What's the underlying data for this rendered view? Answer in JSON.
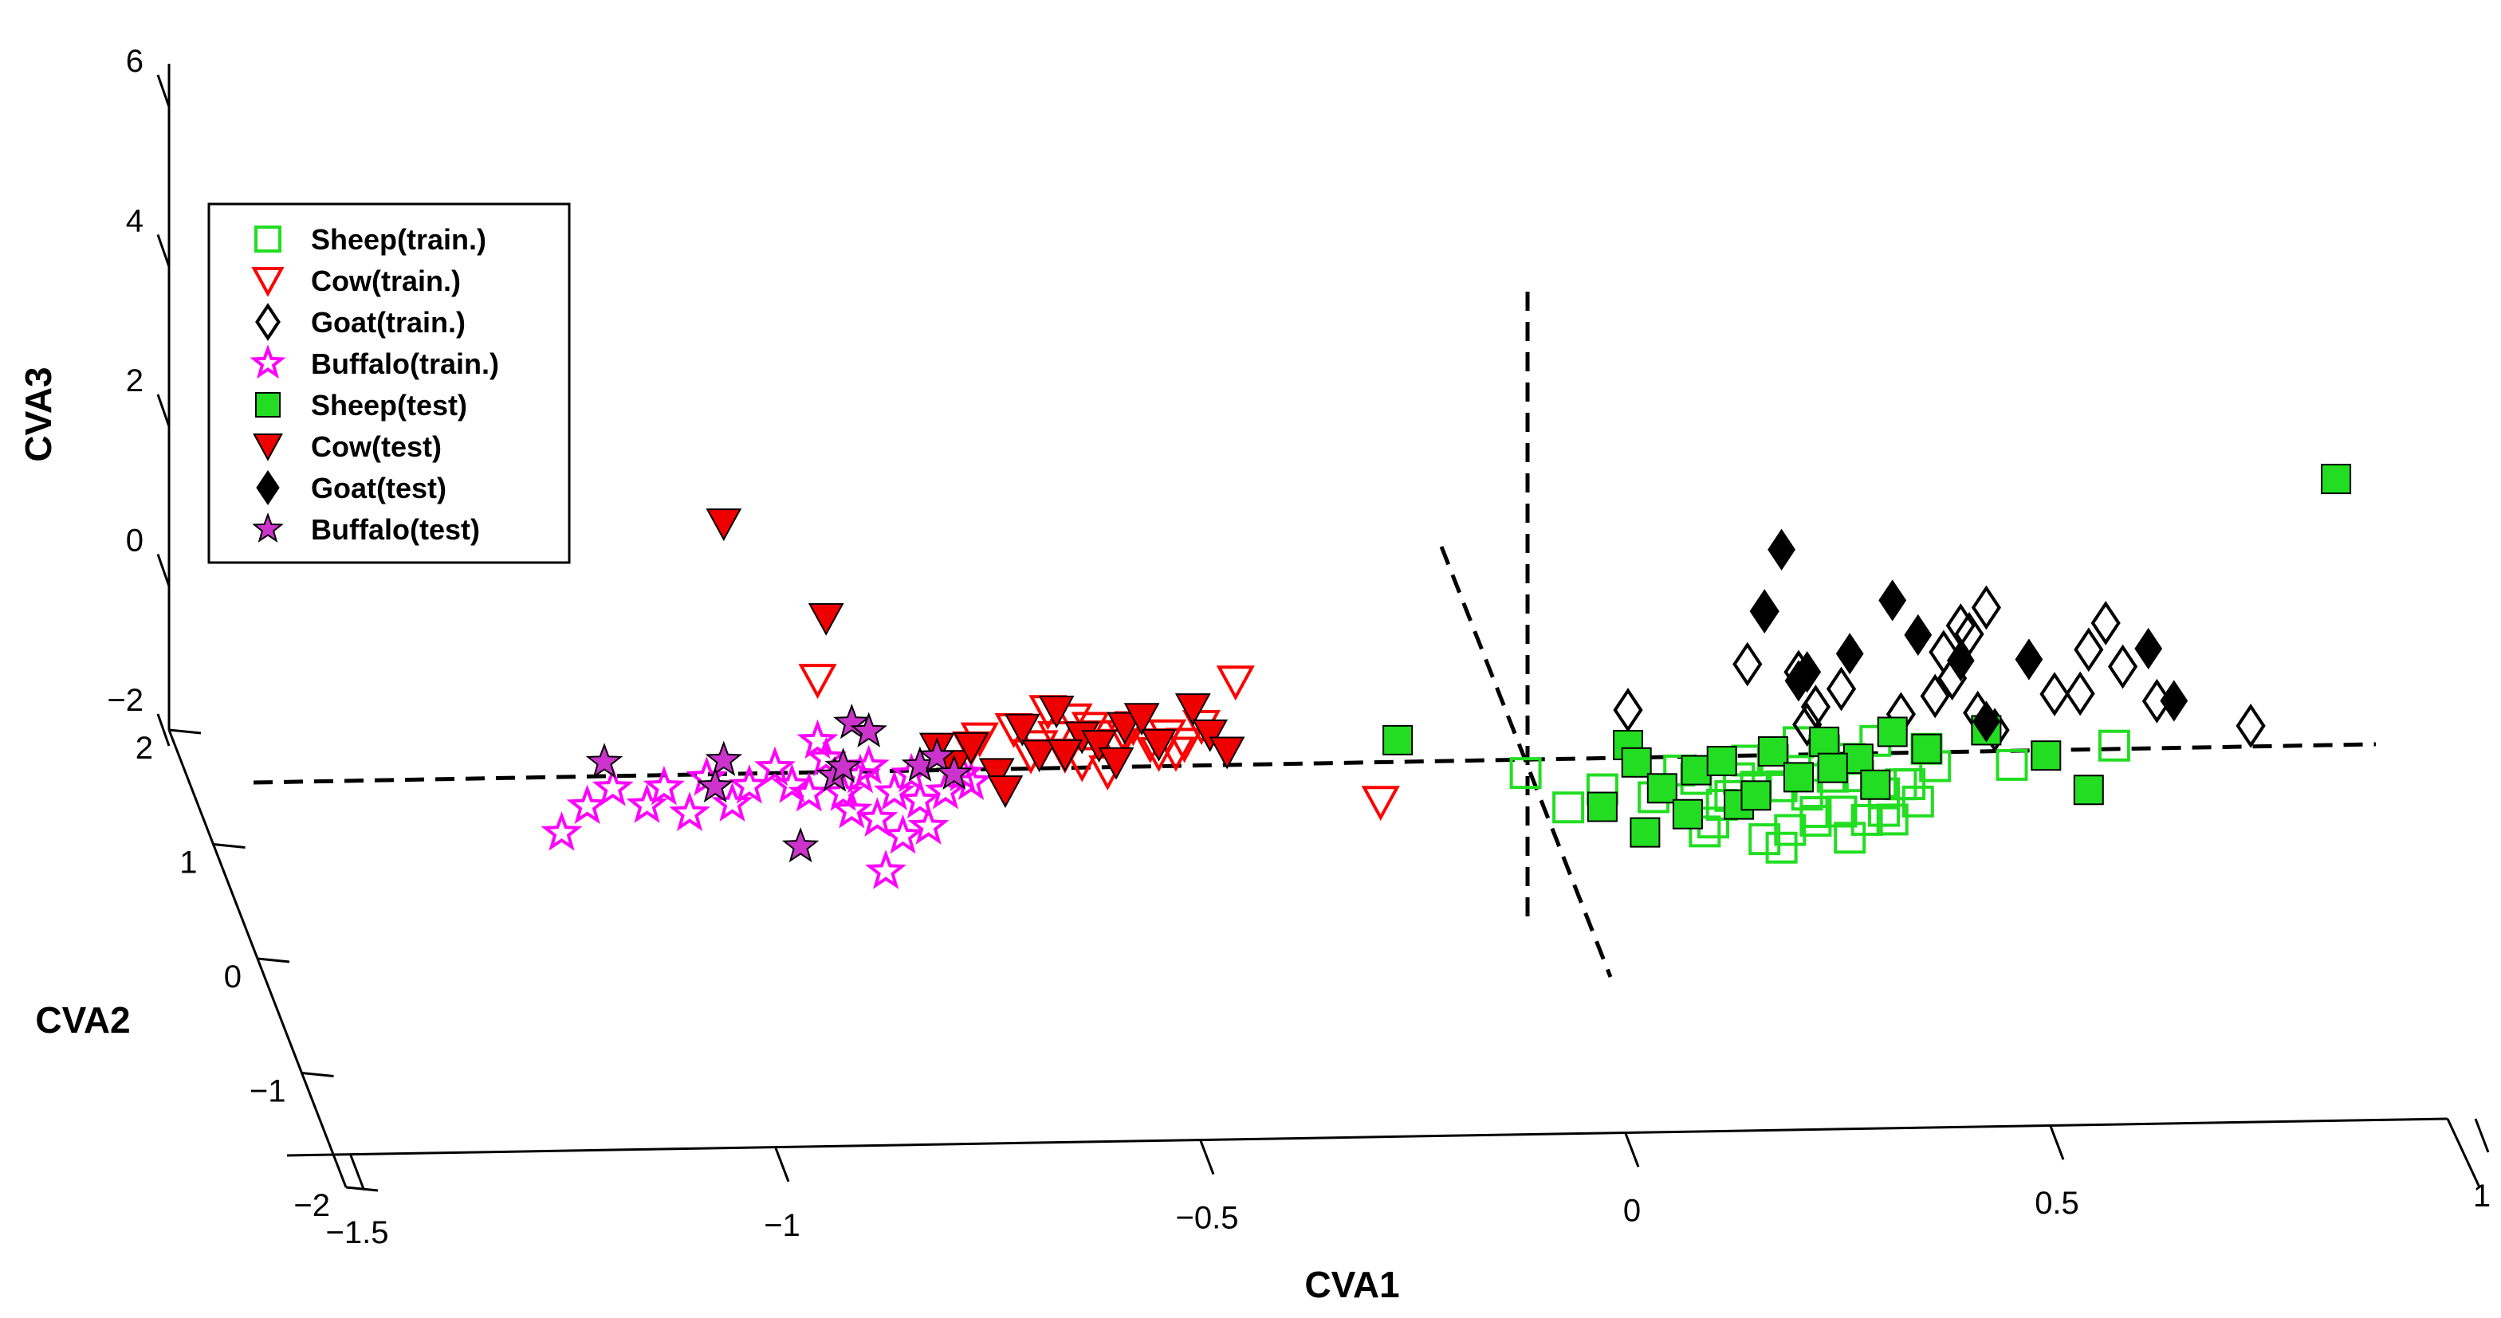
{
  "chart_data": {
    "type": "scatter",
    "projection": "3d",
    "title": "",
    "axes": {
      "x": {
        "label": "CVA1",
        "range": [
          -1.5,
          1
        ],
        "ticks": [
          "−1.5",
          "−1",
          "−0.5",
          "0",
          "0.5",
          "1"
        ],
        "tick_values": [
          -1.5,
          -1,
          -0.5,
          0,
          0.5,
          1
        ]
      },
      "y": {
        "label": "CVA2",
        "range": [
          -2,
          2
        ],
        "ticks": [
          "−2",
          "−1",
          "0",
          "1",
          "2"
        ],
        "tick_values": [
          -2,
          -1,
          0,
          1,
          2
        ]
      },
      "z": {
        "label": "CVA3",
        "range": [
          -2,
          6
        ],
        "ticks": [
          "−2",
          "0",
          "2",
          "4",
          "6"
        ],
        "tick_values": [
          -2,
          0,
          2,
          4,
          6
        ]
      }
    },
    "legend": {
      "position": "top-left",
      "entries": [
        {
          "name": "Sheep(train.)",
          "marker": "square",
          "filled": false,
          "color": "#22dd22"
        },
        {
          "name": "Cow(train.)",
          "marker": "triangle-down",
          "filled": false,
          "color": "#ff0000"
        },
        {
          "name": "Goat(train.)",
          "marker": "diamond",
          "filled": false,
          "color": "#000000"
        },
        {
          "name": "Buffalo(train.)",
          "marker": "star",
          "filled": false,
          "color": "#ff00ff"
        },
        {
          "name": "Sheep(test)",
          "marker": "square",
          "filled": true,
          "color": "#22dd22"
        },
        {
          "name": "Cow(test)",
          "marker": "triangle-down",
          "filled": true,
          "color": "#ee0000"
        },
        {
          "name": "Goat(test)",
          "marker": "diamond",
          "filled": true,
          "color": "#000000"
        },
        {
          "name": "Buffalo(test)",
          "marker": "star",
          "filled": true,
          "color": "#cc33cc"
        }
      ]
    },
    "series_projected": [
      {
        "name": "Sheep(train.)",
        "cva1": [
          -0.12,
          -0.07,
          -0.03,
          0.03,
          0.06,
          0.08,
          0.1,
          0.12,
          0.14,
          0.16,
          0.18,
          0.2,
          0.22,
          0.24,
          0.26,
          0.28,
          0.3,
          0.32,
          0.34,
          0.36,
          0.19,
          0.21,
          0.23,
          0.25,
          0.15,
          0.17,
          0.27,
          0.29,
          0.31,
          0.11,
          0.13,
          0.33,
          0.35,
          0.45,
          0.57,
          0.09,
          0.18,
          0.22,
          0.26,
          0.3
        ],
        "cva3": [
          0.0,
          -0.4,
          -0.2,
          -0.3,
          0.0,
          -0.1,
          -0.6,
          -0.3,
          0.1,
          -0.8,
          -0.2,
          0.3,
          -0.5,
          -0.1,
          0.1,
          -0.6,
          -0.3,
          -0.2,
          -0.4,
          0.0,
          -0.7,
          -0.3,
          0.2,
          -0.5,
          -0.2,
          0.1,
          -0.1,
          0.3,
          -0.6,
          -0.4,
          -0.1,
          -0.2,
          0.2,
          0.0,
          0.2,
          -0.7,
          -0.9,
          -0.6,
          -0.8,
          -0.5
        ]
      },
      {
        "name": "Cow(train.)",
        "cva1": [
          -0.95,
          -0.77,
          -0.76,
          -0.72,
          -0.7,
          -0.69,
          -0.67,
          -0.65,
          -0.63,
          -0.62,
          -0.6,
          -0.58,
          -0.55,
          -0.54,
          -0.52,
          -0.5,
          -0.68,
          -0.66,
          -0.64,
          -0.61,
          -0.59,
          -0.56,
          -0.53,
          -0.46,
          -0.29
        ],
        "cva3": [
          1.2,
          0.4,
          0.5,
          0.6,
          0.3,
          0.4,
          0.5,
          0.7,
          0.6,
          0.5,
          0.4,
          0.6,
          0.3,
          0.5,
          0.4,
          0.6,
          0.8,
          0.3,
          0.2,
          0.1,
          0.5,
          0.4,
          0.3,
          1.1,
          -0.3
        ]
      },
      {
        "name": "Goat(train.)",
        "cva1": [
          0.0,
          0.16,
          0.14,
          0.2,
          0.22,
          0.25,
          0.32,
          0.36,
          0.38,
          0.4,
          0.42,
          0.39,
          0.37,
          0.41,
          0.5,
          0.54,
          0.56,
          0.58,
          0.62,
          0.53,
          0.73,
          0.21,
          0.43
        ],
        "cva3": [
          0.7,
          1.8,
          1.2,
          1.1,
          0.7,
          0.9,
          0.6,
          0.8,
          1.0,
          1.5,
          1.8,
          1.6,
          1.3,
          0.6,
          0.8,
          1.3,
          1.6,
          1.1,
          0.7,
          0.8,
          0.4,
          0.5,
          0.4
        ]
      },
      {
        "name": "Buffalo(train.)",
        "cva1": [
          -1.25,
          -1.22,
          -1.19,
          -1.15,
          -1.13,
          -1.1,
          -1.08,
          -1.05,
          -1.03,
          -1.0,
          -0.98,
          -0.96,
          -0.94,
          -0.92,
          -0.9,
          -0.88,
          -0.86,
          -0.84,
          -0.82,
          -0.8,
          -0.78,
          -0.77,
          -0.95,
          -0.91,
          -0.87,
          -0.85,
          -0.83,
          -0.89
        ],
        "cva3": [
          -0.5,
          -0.2,
          0.0,
          -0.2,
          0.0,
          -0.3,
          0.1,
          -0.2,
          0.0,
          0.2,
          0.0,
          -0.1,
          0.3,
          -0.1,
          0.1,
          -0.4,
          -0.1,
          0.1,
          -0.5,
          -0.1,
          0.1,
          0.0,
          0.5,
          -0.3,
          -1.0,
          -0.6,
          -0.2,
          0.2
        ]
      },
      {
        "name": "Sheep(test)",
        "cva1": [
          -0.27,
          0.0,
          0.01,
          0.04,
          0.08,
          0.11,
          0.13,
          0.17,
          0.2,
          0.23,
          0.27,
          0.29,
          0.31,
          0.35,
          0.42,
          0.49,
          0.54,
          0.83,
          -0.03,
          0.02,
          0.07,
          0.15,
          0.24
        ],
        "cva3": [
          0.4,
          0.3,
          0.1,
          -0.2,
          0.0,
          0.1,
          -0.4,
          0.2,
          -0.1,
          0.3,
          0.1,
          -0.2,
          0.4,
          0.2,
          0.4,
          0.1,
          -0.3,
          3.2,
          -0.4,
          -0.7,
          -0.5,
          -0.3,
          0.0
        ]
      },
      {
        "name": "Cow(test)",
        "cva1": [
          -1.06,
          -0.94,
          -0.81,
          -0.79,
          -0.77,
          -0.74,
          -0.71,
          -0.69,
          -0.67,
          -0.64,
          -0.62,
          -0.59,
          -0.57,
          -0.55,
          -0.51,
          -0.49,
          -0.47,
          -0.73,
          -0.66,
          -0.6
        ],
        "cva3": [
          3.0,
          1.9,
          0.4,
          0.2,
          0.4,
          0.1,
          0.6,
          0.3,
          0.8,
          0.5,
          0.4,
          0.6,
          0.7,
          0.4,
          0.8,
          0.5,
          0.3,
          -0.1,
          0.3,
          0.2
        ]
      },
      {
        "name": "Goat(test)",
        "cva1": [
          0.18,
          0.16,
          0.21,
          0.26,
          0.31,
          0.34,
          0.39,
          0.42,
          0.47,
          0.61,
          0.64,
          0.2
        ],
        "cva3": [
          2.5,
          1.8,
          1.1,
          1.3,
          1.9,
          1.5,
          1.2,
          0.5,
          1.2,
          1.3,
          0.7,
          1.0
        ]
      },
      {
        "name": "Buffalo(test)",
        "cva1": [
          -1.2,
          -1.06,
          -1.07,
          -0.97,
          -0.93,
          -0.91,
          -0.89,
          -0.92,
          -0.83,
          -0.81,
          -0.79
        ],
        "cva3": [
          0.3,
          0.3,
          0.0,
          -0.7,
          0.1,
          0.7,
          0.6,
          0.2,
          0.2,
          0.3,
          0.1
        ]
      }
    ]
  }
}
